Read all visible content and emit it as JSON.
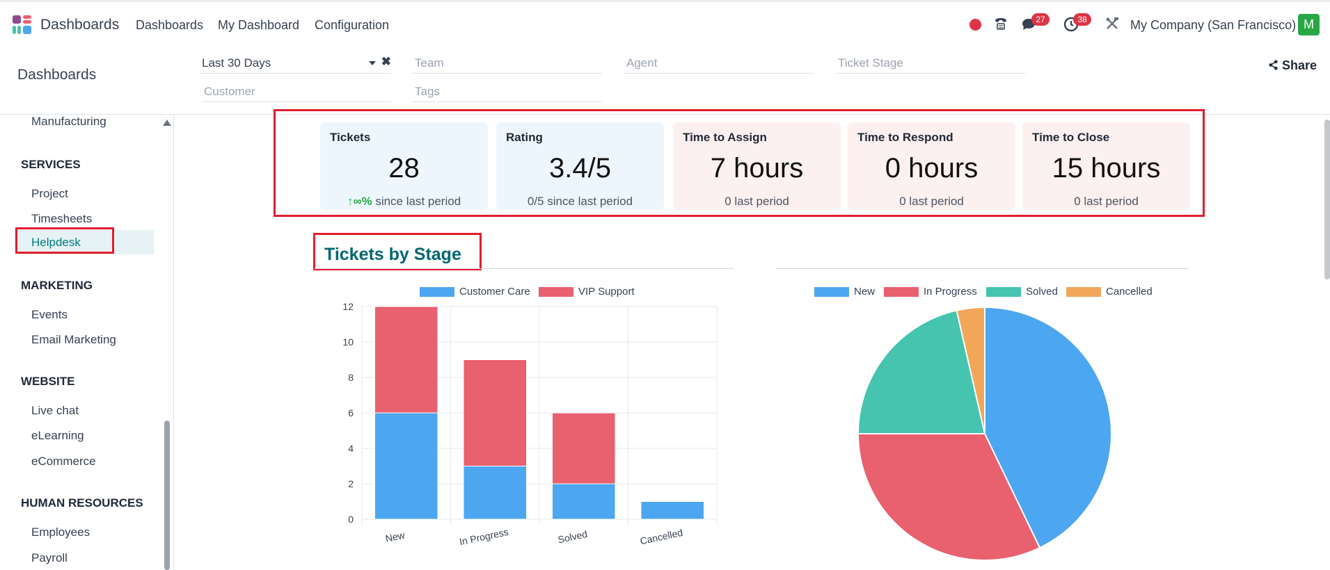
{
  "navbar": {
    "app_title": "Dashboards",
    "menu": [
      "Dashboards",
      "My Dashboard",
      "Configuration"
    ],
    "messages_count": "27",
    "activities_count": "38",
    "company": "My Company (San Francisco)",
    "avatar_initial": "M"
  },
  "control": {
    "breadcrumb": "Dashboards",
    "filters": {
      "period": "Last 30 Days",
      "team_placeholder": "Team",
      "agent_placeholder": "Agent",
      "stage_placeholder": "Ticket Stage",
      "customer_placeholder": "Customer",
      "tags_placeholder": "Tags"
    },
    "share_label": "Share"
  },
  "sidebar": {
    "sections": [
      {
        "title": "",
        "items": [
          "Manufacturing"
        ]
      },
      {
        "title": "SERVICES",
        "items": [
          "Project",
          "Timesheets",
          "Helpdesk"
        ]
      },
      {
        "title": "MARKETING",
        "items": [
          "Events",
          "Email Marketing"
        ]
      },
      {
        "title": "WEBSITE",
        "items": [
          "Live chat",
          "eLearning",
          "eCommerce"
        ]
      },
      {
        "title": "HUMAN RESOURCES",
        "items": [
          "Employees",
          "Payroll"
        ]
      }
    ],
    "active_item": "Helpdesk"
  },
  "kpis": [
    {
      "title": "Tickets",
      "value": "28",
      "trend": "↑∞%",
      "sub": "since last period",
      "tone": "blue"
    },
    {
      "title": "Rating",
      "value": "3.4/5",
      "sub": "0/5 since last period",
      "tone": "blue"
    },
    {
      "title": "Time to Assign",
      "value": "7 hours",
      "sub": "0 last period",
      "tone": "red"
    },
    {
      "title": "Time to Respond",
      "value": "0 hours",
      "sub": "0 last period",
      "tone": "red"
    },
    {
      "title": "Time to Close",
      "value": "15 hours",
      "sub": "0 last period",
      "tone": "red"
    }
  ],
  "section_title": "Tickets by Stage",
  "colors": {
    "customer_care": "#4da6f0",
    "vip_support": "#e9606f",
    "new": "#4da6f0",
    "in_progress": "#e9606f",
    "solved": "#45c4b0",
    "cancelled": "#f2a65a",
    "accent": "#016670",
    "highlight": "#e11d2e"
  },
  "chart_data": [
    {
      "type": "bar",
      "stacked": true,
      "categories": [
        "New",
        "In Progress",
        "Solved",
        "Cancelled"
      ],
      "series": [
        {
          "name": "Customer Care",
          "values": [
            6,
            3,
            2,
            1
          ],
          "color": "#4da6f0"
        },
        {
          "name": "VIP Support",
          "values": [
            6,
            6,
            4,
            0
          ],
          "color": "#e9606f"
        }
      ],
      "ylim": [
        0,
        12
      ],
      "yticks": [
        0,
        2,
        4,
        6,
        8,
        10,
        12
      ],
      "grid": true,
      "legend": "top"
    },
    {
      "type": "pie",
      "labels": [
        "New",
        "In Progress",
        "Solved",
        "Cancelled"
      ],
      "values": [
        12,
        9,
        6,
        1
      ],
      "colors": [
        "#4da6f0",
        "#e9606f",
        "#45c4b0",
        "#f2a65a"
      ],
      "legend": "top"
    }
  ]
}
